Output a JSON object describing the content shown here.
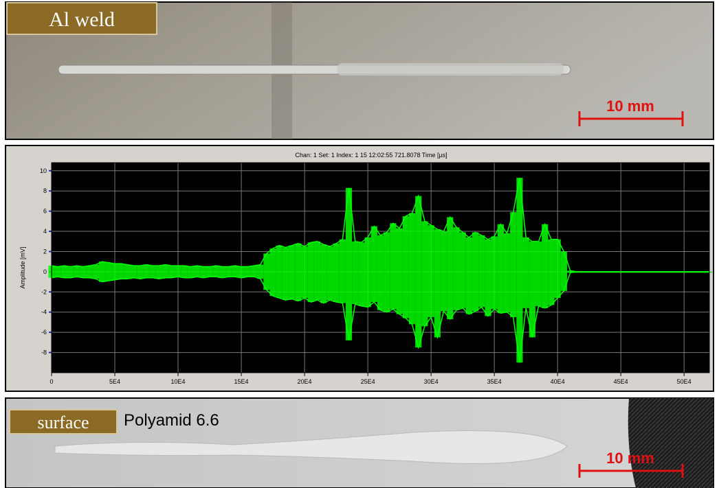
{
  "photos": [
    {
      "label": "Al weld",
      "scale_bar": "10 mm"
    },
    {
      "label": "surface",
      "caption": "Polyamid 6.6",
      "scale_bar": "10 mm"
    }
  ],
  "chart_data": {
    "type": "line",
    "title": "Chan: 1  Set: 1  Index: 1   15  12:02:55 721.8078  Time [µs]",
    "y_label": "Amplitude [mV]",
    "xlim": [
      0,
      520000
    ],
    "xticks": [
      0,
      {
        "value": 50000,
        "label": "5E4"
      },
      {
        "value": 100000,
        "label": "10E4"
      },
      {
        "value": 150000,
        "label": "15E4"
      },
      {
        "value": 200000,
        "label": "20E4"
      },
      {
        "value": 250000,
        "label": "25E4"
      },
      {
        "value": 300000,
        "label": "30E4"
      },
      {
        "value": 350000,
        "label": "35E4"
      },
      {
        "value": 400000,
        "label": "40E4"
      },
      {
        "value": 450000,
        "label": "45E4"
      },
      {
        "value": 500000,
        "label": "50E4"
      }
    ],
    "ylim": [
      -10,
      10.8
    ],
    "yticks": [
      -8,
      -6,
      -4,
      -2,
      0,
      2,
      4,
      6,
      8,
      10
    ],
    "grid": true,
    "x": [
      0,
      5000,
      10000,
      15000,
      20000,
      25000,
      30000,
      35000,
      40000,
      45000,
      50000,
      55000,
      60000,
      65000,
      70000,
      75000,
      80000,
      85000,
      90000,
      95000,
      100000,
      105000,
      110000,
      115000,
      120000,
      125000,
      130000,
      135000,
      140000,
      145000,
      150000,
      155000,
      160000,
      165000,
      170000,
      175000,
      180000,
      185000,
      190000,
      195000,
      200000,
      205000,
      210000,
      215000,
      220000,
      225000,
      230000,
      235000,
      240000,
      245000,
      250000,
      255000,
      260000,
      265000,
      270000,
      275000,
      280000,
      285000,
      290000,
      295000,
      300000,
      305000,
      310000,
      315000,
      320000,
      325000,
      330000,
      335000,
      340000,
      345000,
      350000,
      355000,
      360000,
      365000,
      370000,
      375000,
      380000,
      385000,
      390000,
      395000,
      400000,
      405000,
      410000,
      415000,
      420000,
      425000,
      430000,
      435000,
      440000,
      445000,
      450000,
      455000,
      460000,
      465000,
      470000,
      475000,
      480000,
      485000,
      490000,
      495000,
      500000,
      505000,
      510000,
      515000,
      520000
    ],
    "series": [
      {
        "color": "#00ff00",
        "values": [
          0.6,
          0.5,
          0.6,
          0.5,
          0.6,
          0.5,
          0.6,
          0.7,
          1.0,
          0.9,
          0.8,
          0.8,
          0.7,
          0.6,
          0.6,
          0.7,
          0.6,
          0.6,
          0.7,
          0.6,
          0.6,
          0.6,
          0.5,
          0.6,
          0.5,
          0.5,
          0.6,
          0.5,
          0.5,
          0.6,
          0.5,
          0.5,
          0.6,
          0.7,
          1.8,
          2.3,
          2.6,
          2.4,
          2.6,
          2.8,
          2.5,
          2.9,
          3.0,
          2.7,
          2.5,
          2.8,
          3.2,
          8.3,
          3.0,
          2.9,
          3.4,
          4.5,
          3.6,
          3.9,
          4.8,
          4.3,
          5.5,
          5.8,
          7.5,
          5.0,
          4.6,
          4.2,
          4.0,
          5.4,
          4.4,
          3.9,
          3.4,
          3.9,
          3.6,
          3.2,
          3.5,
          4.7,
          3.8,
          5.9,
          9.3,
          3.4,
          3.0,
          3.0,
          4.7,
          3.2,
          3.2,
          2.0,
          0.1,
          0,
          0,
          0,
          0,
          0,
          0,
          0,
          0,
          0,
          0,
          0,
          0,
          0,
          0,
          0,
          0,
          0,
          0,
          0,
          0,
          0,
          0
        ]
      },
      {
        "color": "#00ff00",
        "values": [
          -0.6,
          -0.5,
          -0.6,
          -0.6,
          -0.5,
          -0.6,
          -0.6,
          -0.7,
          -1.0,
          -0.9,
          -0.8,
          -0.7,
          -0.7,
          -0.6,
          -0.7,
          -0.6,
          -0.6,
          -0.7,
          -0.6,
          -0.6,
          -0.5,
          -0.6,
          -0.6,
          -0.5,
          -0.6,
          -0.5,
          -0.5,
          -0.6,
          -0.5,
          -0.5,
          -0.6,
          -0.5,
          -0.5,
          -0.7,
          -1.8,
          -2.4,
          -2.6,
          -2.8,
          -2.7,
          -2.9,
          -2.6,
          -3.0,
          -2.8,
          -3.1,
          -2.8,
          -3.0,
          -3.1,
          -6.8,
          -3.2,
          -3.4,
          -3.5,
          -3.0,
          -3.8,
          -4.0,
          -3.7,
          -4.2,
          -4.6,
          -5.2,
          -7.5,
          -5.4,
          -4.5,
          -6.5,
          -3.9,
          -4.7,
          -3.8,
          -3.6,
          -4.2,
          -3.9,
          -3.5,
          -4.4,
          -3.7,
          -4.1,
          -4.0,
          -4.5,
          -9.0,
          -3.6,
          -6.5,
          -3.4,
          -3.6,
          -3.3,
          -2.6,
          -1.9,
          -0.1,
          0,
          0,
          0,
          0,
          0,
          0,
          0,
          0,
          0,
          0,
          0,
          0,
          0,
          0,
          0,
          0,
          0,
          0,
          0,
          0,
          0,
          0
        ]
      }
    ]
  }
}
